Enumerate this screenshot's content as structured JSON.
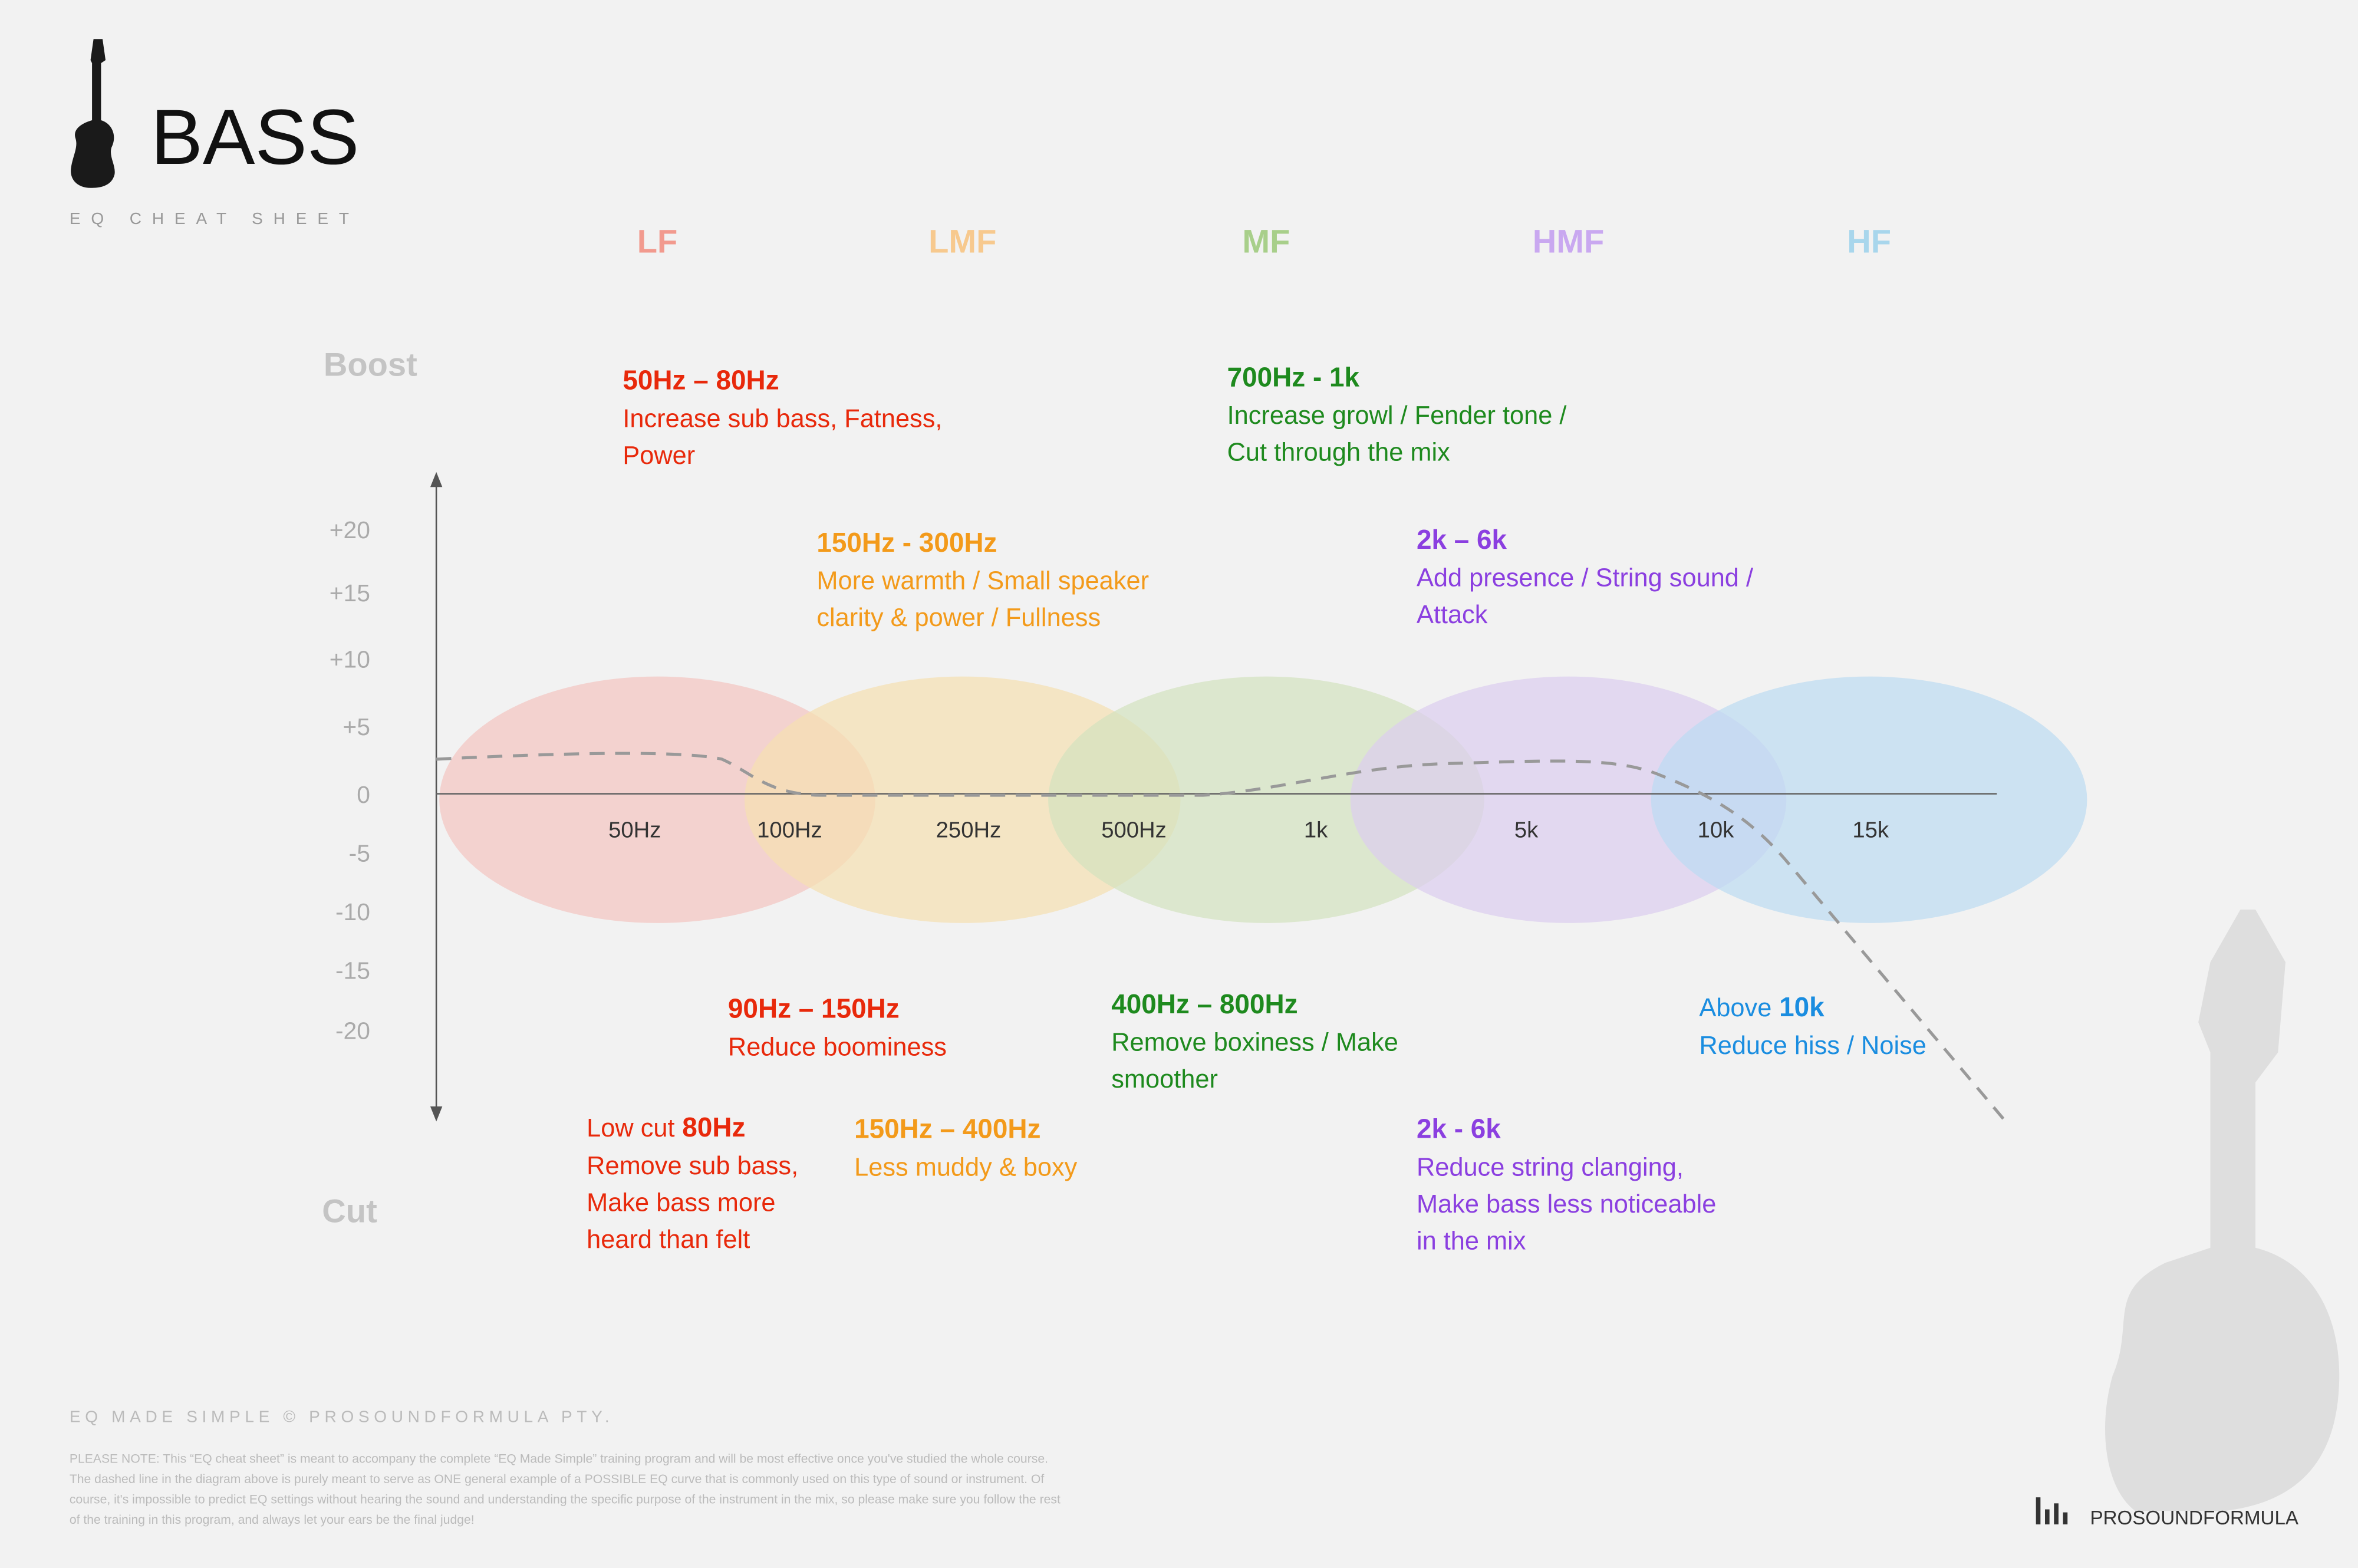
{
  "header": {
    "title": "BASS",
    "subtitle": "EQ CHEAT SHEET"
  },
  "bands": [
    {
      "label": "LF",
      "color": "#f29a8e",
      "fill": "#f4c4c0"
    },
    {
      "label": "LMF",
      "color": "#f7c98e",
      "fill": "#f5dfb0"
    },
    {
      "label": "MF",
      "color": "#a8cf8a",
      "fill": "#d3e2bf"
    },
    {
      "label": "HMF",
      "color": "#c9a8f0",
      "fill": "#dccdf0"
    },
    {
      "label": "HF",
      "color": "#a8d6ec",
      "fill": "#bcdcf2"
    }
  ],
  "y_axis": {
    "top": "Boost",
    "bottom": "Cut",
    "labels": [
      "+20",
      "+15",
      "+10",
      "+5",
      "0",
      "-5",
      "-10",
      "-15",
      "-20"
    ]
  },
  "x_axis": {
    "labels": [
      "50Hz",
      "100Hz",
      "250Hz",
      "500Hz",
      "1k",
      "5k",
      "10k",
      "15k"
    ]
  },
  "annotations": [
    {
      "heading": "50Hz – 80Hz",
      "lines": [
        "Increase sub bass, Fatness,",
        "Power"
      ],
      "color": "#e8290b"
    },
    {
      "heading": "700Hz - 1k",
      "lines": [
        "Increase growl / Fender tone /",
        "Cut through the mix"
      ],
      "color": "#1e8a1e"
    },
    {
      "heading": "150Hz - 300Hz",
      "lines": [
        "More warmth / Small speaker",
        "clarity & power / Fullness"
      ],
      "color": "#f39a1a"
    },
    {
      "heading": "2k – 6k",
      "lines": [
        "Add presence / String sound /",
        "Attack"
      ],
      "color": "#8b3fe0"
    },
    {
      "heading": "90Hz – 150Hz",
      "lines": [
        "Reduce boominess"
      ],
      "color": "#e8290b"
    },
    {
      "heading": "400Hz – 800Hz",
      "lines": [
        "Remove boxiness / Make",
        "smoother"
      ],
      "color": "#1e8a1e"
    },
    {
      "prefix": "Above",
      "heading": "10k",
      "lines": [
        "Reduce hiss / Noise"
      ],
      "color": "#1a8de0"
    },
    {
      "prefix": "Low cut",
      "heading": "80Hz",
      "lines": [
        "Remove sub bass,",
        "Make bass more",
        "heard than felt"
      ],
      "color": "#e8290b"
    },
    {
      "heading": "150Hz – 400Hz",
      "lines": [
        "Less muddy & boxy"
      ],
      "color": "#f39a1a"
    },
    {
      "heading": "2k - 6k",
      "lines": [
        "Reduce string clanging,",
        "Make bass less noticeable",
        "in the mix"
      ],
      "color": "#8b3fe0"
    }
  ],
  "footer": {
    "copyright": "EQ MADE SIMPLE   © PROSOUNDFORMULA PTY.",
    "note": [
      "PLEASE NOTE: This “EQ cheat sheet” is meant to accompany the complete “EQ Made Simple” training program and will be most effective once you've studied the whole course.",
      "The dashed line in the diagram above is purely meant to serve as ONE general example of a POSSIBLE EQ curve that is commonly used on this type of sound or instrument. Of",
      "course, it's impossible to predict EQ settings without hearing the sound and understanding the specific purpose of the instrument in the mix, so please make sure you follow the rest",
      "of the training in this program, and always let your ears be the final judge!"
    ],
    "brand": "PROSOUNDFORMULA"
  }
}
